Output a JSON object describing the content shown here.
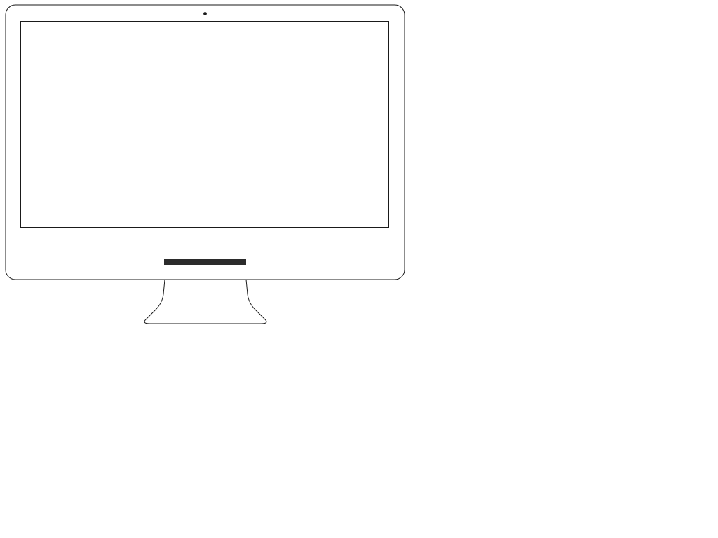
{
  "illustration": {
    "subject": "monitor-icon",
    "style": "line-drawing",
    "colors": {
      "background": "#ffffff",
      "outline": "#1a1a1a",
      "accent_bar": "#2b2b2b",
      "screen_fill": "#ffffff"
    }
  }
}
